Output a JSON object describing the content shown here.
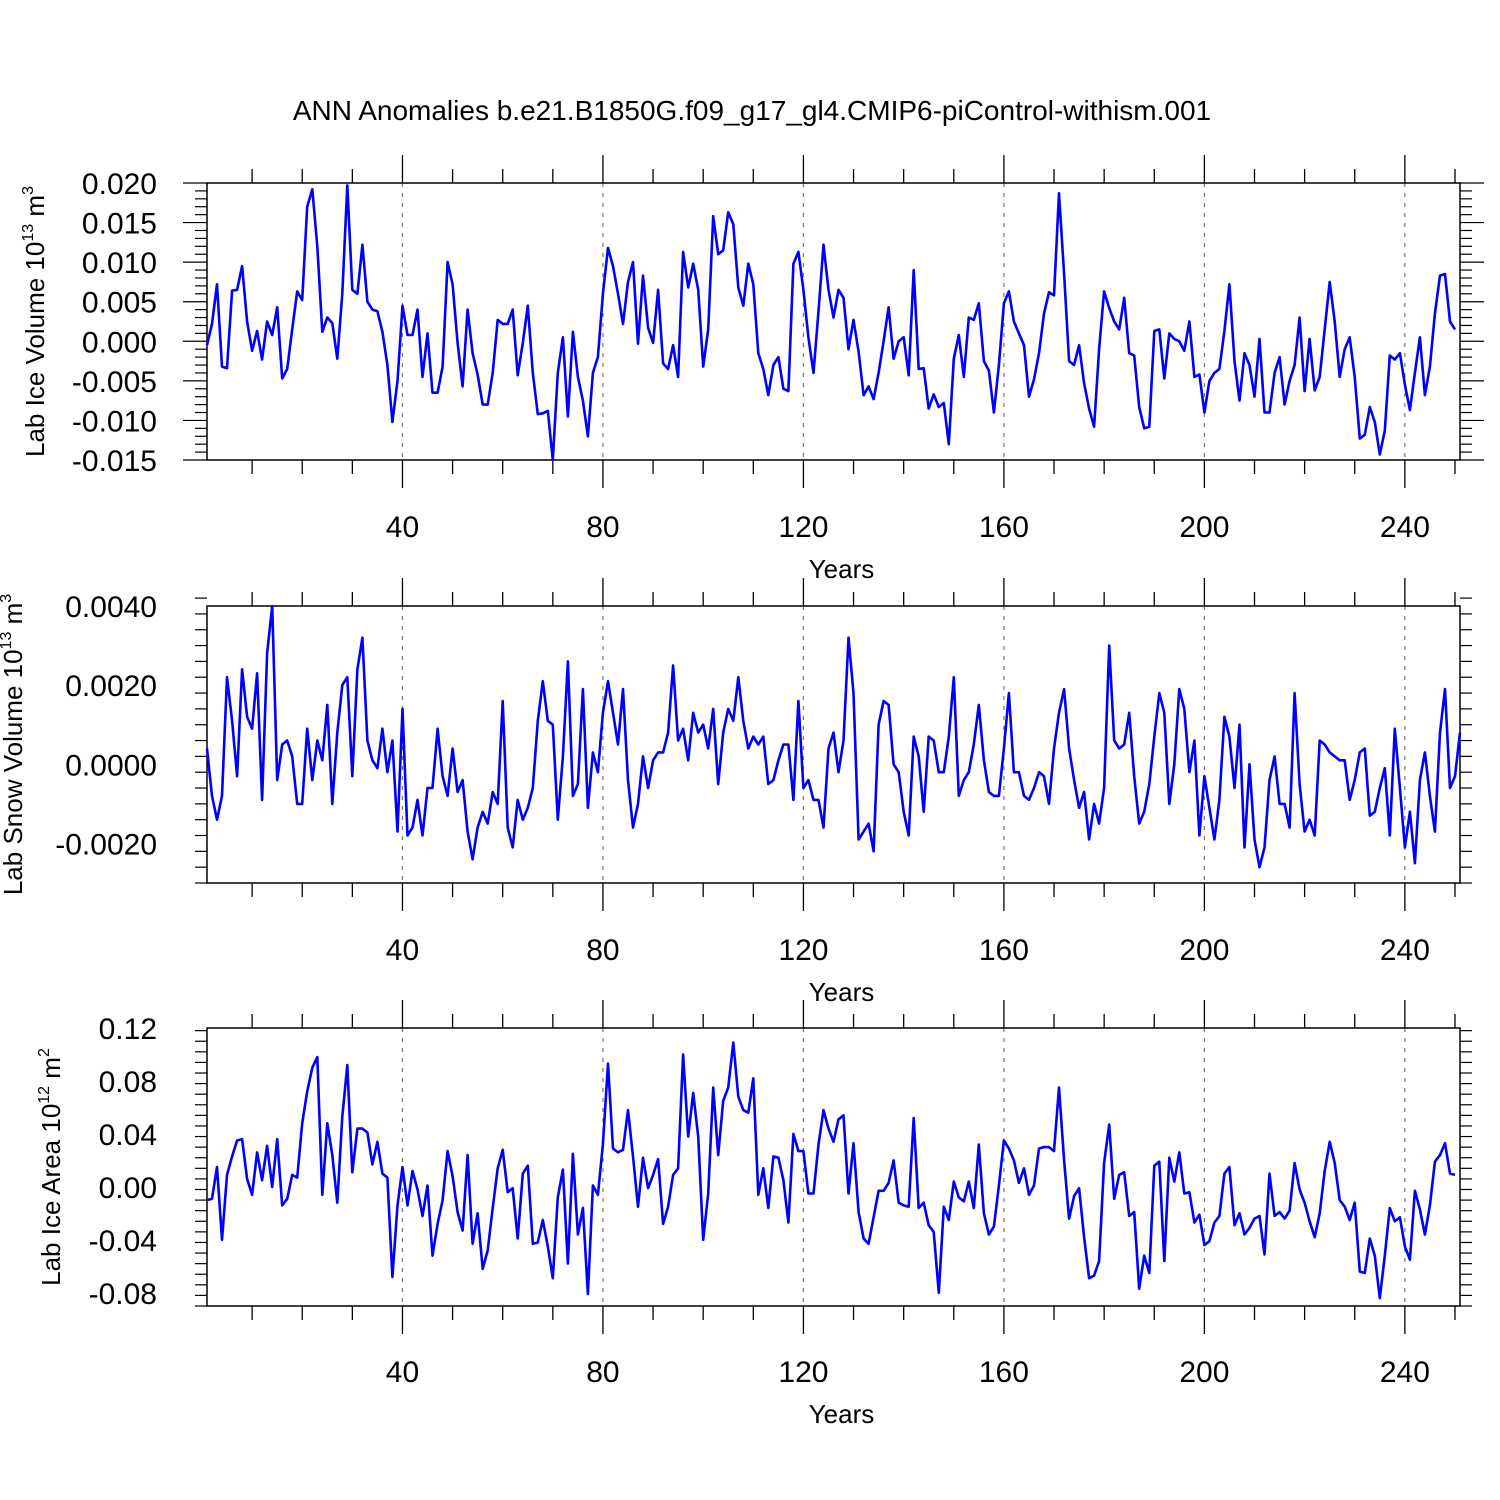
{
  "title": "ANN Anomalies b.e21.B1850G.f09_g17_gl4.CMIP6-piControl-withism.001",
  "line_color": "#0000ff",
  "chart_data": [
    {
      "type": "line",
      "xlabel": "Years",
      "ylabel_main": "Lab Ice Volume 10",
      "ylabel_sup": "13",
      "ylabel_unit": "m",
      "ylabel_unit_sup": "3",
      "xlim": [
        1,
        251
      ],
      "ylim": [
        -0.015,
        0.02
      ],
      "xticks": [
        40,
        80,
        120,
        160,
        200,
        240
      ],
      "xtick_labels": [
        "40",
        "80",
        "120",
        "160",
        "200",
        "240"
      ],
      "yticks": [
        -0.015,
        -0.01,
        -0.005,
        0.0,
        0.005,
        0.01,
        0.015,
        0.02
      ],
      "ytick_labels": [
        "-0.015",
        "-0.010",
        "-0.005",
        "0.000",
        "0.005",
        "0.010",
        "0.015",
        "0.020"
      ],
      "values": [
        -0.0005,
        0.0022,
        0.0072,
        -0.0032,
        -0.0034,
        0.0064,
        0.0065,
        0.0095,
        0.0025,
        -0.0012,
        0.0013,
        -0.0023,
        0.0025,
        0.0008,
        0.0043,
        -0.0047,
        -0.0035,
        0.0015,
        0.0063,
        0.0052,
        0.017,
        0.0192,
        0.012,
        0.0012,
        0.003,
        0.0023,
        -0.0022,
        0.006,
        0.0197,
        0.0065,
        0.006,
        0.0122,
        0.005,
        0.004,
        0.0038,
        0.0012,
        -0.003,
        -0.0102,
        -0.005,
        0.0045,
        0.0008,
        0.0008,
        0.004,
        -0.0045,
        0.001,
        -0.0065,
        -0.0065,
        -0.0032,
        0.01,
        0.0072,
        -0.0002,
        -0.0057,
        0.004,
        -0.0015,
        -0.0042,
        -0.008,
        -0.008,
        -0.004,
        0.0027,
        0.0022,
        0.0022,
        0.004,
        -0.0043,
        -0.0002,
        0.0045,
        -0.004,
        -0.0092,
        -0.0091,
        -0.0088,
        -0.015,
        -0.004,
        0.0005,
        -0.0095,
        0.0012,
        -0.0045,
        -0.0075,
        -0.012,
        -0.004,
        -0.002,
        0.006,
        0.0118,
        0.0095,
        0.006,
        0.0022,
        0.0075,
        0.01,
        -0.0003,
        0.0083,
        0.0017,
        -0.0002,
        0.0065,
        -0.0028,
        -0.0035,
        -0.0005,
        -0.0045,
        0.0113,
        0.0068,
        0.0098,
        0.0065,
        -0.0032,
        0.0015,
        0.0158,
        0.011,
        0.0115,
        0.0163,
        0.0148,
        0.0068,
        0.0045,
        0.0098,
        0.0072,
        -0.0015,
        -0.0035,
        -0.0068,
        -0.003,
        -0.002,
        -0.006,
        -0.0063,
        0.0098,
        0.0113,
        0.0065,
        0.0005,
        -0.004,
        0.0038,
        0.0122,
        0.0065,
        0.003,
        0.0065,
        0.0055,
        -0.001,
        0.0027,
        -0.0013,
        -0.0068,
        -0.0057,
        -0.0073,
        -0.004,
        0.0,
        0.0043,
        -0.0022,
        0.0,
        0.0005,
        -0.0043,
        0.009,
        -0.0035,
        -0.0034,
        -0.0085,
        -0.0067,
        -0.0083,
        -0.0078,
        -0.013,
        -0.0022,
        0.0008,
        -0.0045,
        0.003,
        0.0027,
        0.0048,
        -0.0025,
        -0.0037,
        -0.009,
        -0.003,
        0.0048,
        0.0063,
        0.0025,
        0.001,
        -0.0005,
        -0.007,
        -0.0048,
        -0.0015,
        0.0035,
        0.0062,
        0.0058,
        0.0187,
        0.0085,
        -0.0025,
        -0.003,
        -0.0005,
        -0.0053,
        -0.0085,
        -0.0108,
        -0.001,
        0.0063,
        0.0042,
        0.0025,
        0.0015,
        0.0055,
        -0.0015,
        -0.0018,
        -0.0083,
        -0.011,
        -0.0108,
        0.0013,
        0.0015,
        -0.0047,
        0.001,
        0.0003,
        0.0,
        -0.0012,
        0.0025,
        -0.0045,
        -0.0042,
        -0.009,
        -0.005,
        -0.004,
        -0.0035,
        0.0013,
        0.0072,
        -0.0025,
        -0.0075,
        -0.0015,
        -0.003,
        -0.007,
        0.0003,
        -0.009,
        -0.009,
        -0.004,
        -0.002,
        -0.008,
        -0.005,
        -0.003,
        0.003,
        -0.0063,
        0.0003,
        -0.0062,
        -0.0045,
        0.0015,
        0.0075,
        0.0025,
        -0.0045,
        -0.001,
        0.0005,
        -0.0045,
        -0.0123,
        -0.0118,
        -0.0083,
        -0.0102,
        -0.0143,
        -0.0113,
        -0.0018,
        -0.0023,
        -0.0015,
        -0.0055,
        -0.0087,
        -0.004,
        0.0005,
        -0.0068,
        -0.0032,
        0.0035,
        0.0083,
        0.0085,
        0.0025,
        0.0015
      ]
    },
    {
      "type": "line",
      "xlabel": "Years",
      "ylabel_main": "Lab Snow Volume 10",
      "ylabel_sup": "13",
      "ylabel_unit": "m",
      "ylabel_unit_sup": "3",
      "xlim": [
        1,
        251
      ],
      "ylim": [
        -0.003,
        0.004
      ],
      "xticks": [
        40,
        80,
        120,
        160,
        200,
        240
      ],
      "xtick_labels": [
        "40",
        "80",
        "120",
        "160",
        "200",
        "240"
      ],
      "yticks": [
        -0.002,
        0.0,
        0.002,
        0.004
      ],
      "ytick_labels": [
        "-0.0020",
        "0.0000",
        "0.0020",
        "0.0040"
      ],
      "values": [
        0.0004,
        -0.0008,
        -0.0014,
        -0.0008,
        0.0022,
        0.0011,
        -0.0003,
        0.0024,
        0.0012,
        0.0009,
        0.0023,
        -0.0009,
        0.0028,
        0.004,
        -0.0004,
        0.0005,
        0.0006,
        0.0002,
        -0.001,
        -0.001,
        0.0009,
        -0.0004,
        0.0006,
        0.0001,
        0.0015,
        -0.001,
        0.0008,
        0.002,
        0.0022,
        -0.0003,
        0.0024,
        0.0032,
        0.0006,
        0.0001,
        -0.0001,
        0.0009,
        -0.0002,
        0.0006,
        -0.0017,
        0.0014,
        -0.0018,
        -0.0016,
        -0.0009,
        -0.0018,
        -0.0006,
        -0.0006,
        0.0009,
        -0.0003,
        -0.0008,
        0.0004,
        -0.0007,
        -0.0004,
        -0.0017,
        -0.0024,
        -0.0016,
        -0.0012,
        -0.0015,
        -0.0007,
        -0.001,
        0.0016,
        -0.0016,
        -0.0021,
        -0.0009,
        -0.0014,
        -0.0011,
        -0.0006,
        0.0011,
        0.0021,
        0.0011,
        0.001,
        -0.0014,
        0.0002,
        0.0026,
        -0.0008,
        -0.0005,
        0.0019,
        -0.0011,
        0.0003,
        -0.0002,
        0.0013,
        0.0021,
        0.0013,
        0.0005,
        0.0019,
        -0.0004,
        -0.0016,
        -0.001,
        0.0002,
        -0.0006,
        0.0001,
        0.0003,
        0.0003,
        0.0008,
        0.0025,
        0.0006,
        0.0009,
        0.0001,
        0.0013,
        0.0008,
        0.001,
        0.0004,
        0.0014,
        -0.0005,
        0.0008,
        0.0014,
        0.0011,
        0.0022,
        0.0011,
        0.0004,
        0.0007,
        0.0005,
        0.0007,
        -0.0005,
        -0.0004,
        0.0001,
        0.0005,
        0.0005,
        -0.0009,
        0.0016,
        -0.0006,
        -0.0004,
        -0.0009,
        -0.0009,
        -0.0016,
        0.0004,
        0.0008,
        -0.0002,
        0.0006,
        0.0032,
        0.0018,
        -0.0019,
        -0.0017,
        -0.0015,
        -0.0022,
        0.001,
        0.0016,
        0.0015,
        0.0,
        -0.0002,
        -0.0012,
        -0.0018,
        0.0007,
        0.0002,
        -0.0012,
        0.0007,
        0.0006,
        -0.0002,
        -0.0002,
        0.0007,
        0.0022,
        -0.0008,
        -0.0004,
        -0.0002,
        0.0005,
        0.0015,
        0.0001,
        -0.0007,
        -0.0008,
        -0.0008,
        0.0004,
        0.0018,
        -0.0002,
        -0.0002,
        -0.0008,
        -0.0009,
        -0.0006,
        -0.0002,
        -0.0003,
        -0.001,
        0.0004,
        0.0013,
        0.0019,
        0.0004,
        -0.0004,
        -0.0011,
        -0.0007,
        -0.0019,
        -0.001,
        -0.0015,
        -0.0006,
        0.003,
        0.0006,
        0.0004,
        0.0005,
        0.0013,
        -0.0003,
        -0.0015,
        -0.0012,
        -0.0005,
        0.0007,
        0.0018,
        0.0013,
        -0.001,
        0.0,
        0.0019,
        0.0014,
        -0.0002,
        0.0006,
        -0.0018,
        -0.0003,
        -0.0011,
        -0.0019,
        -0.0009,
        0.0012,
        0.0007,
        -0.0006,
        0.001,
        -0.0021,
        0.0,
        -0.0019,
        -0.0026,
        -0.0021,
        -0.0004,
        0.0002,
        -0.001,
        -0.001,
        -0.0016,
        0.0018,
        -0.0005,
        -0.0017,
        -0.0014,
        -0.0018,
        0.0006,
        0.0005,
        0.0003,
        0.0002,
        0.0001,
        0.0001,
        -0.0009,
        -0.0004,
        0.0003,
        0.0004,
        -0.0013,
        -0.0012,
        -0.0006,
        -0.0001,
        -0.0018,
        0.0009,
        -0.0006,
        -0.0021,
        -0.0012,
        -0.0025,
        -0.0004,
        0.0003,
        -0.0008,
        -0.0017,
        0.0008,
        0.0019,
        -0.0006,
        -0.0003,
        0.0008
      ]
    },
    {
      "type": "line",
      "xlabel": "Years",
      "ylabel_main": "Lab Ice Area 10",
      "ylabel_sup": "12",
      "ylabel_unit": "m",
      "ylabel_unit_sup": "2",
      "xlim": [
        1,
        251
      ],
      "ylim": [
        -0.09,
        0.12
      ],
      "xticks": [
        40,
        80,
        120,
        160,
        200,
        240
      ],
      "xtick_labels": [
        "40",
        "80",
        "120",
        "160",
        "200",
        "240"
      ],
      "yticks": [
        -0.08,
        -0.04,
        0.0,
        0.04,
        0.08,
        0.12
      ],
      "ytick_labels": [
        "-0.08",
        "-0.04",
        "0.00",
        "0.04",
        "0.08",
        "0.12"
      ],
      "values": [
        -0.01,
        -0.009,
        0.015,
        -0.04,
        0.009,
        0.023,
        0.035,
        0.036,
        0.006,
        -0.006,
        0.026,
        0.005,
        0.031,
        0.0,
        0.036,
        -0.014,
        -0.009,
        0.009,
        0.007,
        0.048,
        0.072,
        0.09,
        0.098,
        -0.006,
        0.048,
        0.024,
        -0.012,
        0.053,
        0.092,
        0.011,
        0.044,
        0.044,
        0.041,
        0.017,
        0.034,
        0.01,
        0.007,
        -0.068,
        -0.014,
        0.015,
        -0.014,
        0.012,
        -0.002,
        -0.022,
        0.001,
        -0.052,
        -0.028,
        -0.01,
        0.027,
        0.008,
        -0.019,
        -0.033,
        0.024,
        -0.043,
        -0.02,
        -0.062,
        -0.048,
        -0.016,
        0.014,
        0.028,
        -0.004,
        -0.001,
        -0.039,
        0.01,
        0.016,
        -0.043,
        -0.042,
        -0.025,
        -0.045,
        -0.069,
        -0.008,
        0.013,
        -0.058,
        0.025,
        -0.036,
        -0.016,
        -0.081,
        0.001,
        -0.006,
        0.032,
        0.093,
        0.029,
        0.026,
        0.028,
        0.058,
        0.023,
        -0.015,
        0.022,
        -0.001,
        0.009,
        0.021,
        -0.028,
        -0.015,
        0.009,
        0.014,
        0.1,
        0.038,
        0.071,
        0.038,
        -0.04,
        -0.005,
        0.075,
        0.024,
        0.065,
        0.075,
        0.109,
        0.068,
        0.058,
        0.056,
        0.082,
        -0.006,
        0.014,
        -0.016,
        0.023,
        0.022,
        0.005,
        -0.027,
        0.04,
        0.027,
        0.027,
        -0.005,
        -0.005,
        0.032,
        0.058,
        0.044,
        0.034,
        0.051,
        0.054,
        -0.005,
        0.033,
        -0.019,
        -0.039,
        -0.043,
        -0.023,
        -0.003,
        -0.003,
        0.003,
        0.02,
        -0.012,
        -0.014,
        -0.015,
        0.052,
        -0.016,
        -0.012,
        -0.029,
        -0.034,
        -0.08,
        -0.015,
        -0.025,
        0.004,
        -0.008,
        -0.011,
        0.004,
        -0.016,
        0.032,
        -0.02,
        -0.036,
        -0.03,
        0.001,
        0.035,
        0.029,
        0.02,
        0.003,
        0.014,
        -0.006,
        0.001,
        0.029,
        0.03,
        0.03,
        0.027,
        0.075,
        0.02,
        -0.024,
        -0.007,
        -0.001,
        -0.038,
        -0.069,
        -0.067,
        -0.056,
        0.018,
        0.047,
        -0.009,
        0.009,
        0.011,
        -0.022,
        -0.019,
        -0.077,
        -0.052,
        -0.065,
        0.016,
        0.019,
        -0.056,
        0.022,
        0.004,
        0.026,
        -0.005,
        -0.004,
        -0.027,
        -0.021,
        -0.044,
        -0.041,
        -0.027,
        -0.022,
        0.01,
        0.015,
        -0.029,
        -0.02,
        -0.036,
        -0.031,
        -0.024,
        -0.022,
        -0.051,
        0.01,
        -0.022,
        -0.019,
        -0.024,
        -0.018,
        0.018,
        -0.002,
        -0.012,
        -0.026,
        -0.038,
        -0.02,
        0.012,
        0.034,
        0.018,
        -0.01,
        -0.015,
        -0.025,
        -0.012,
        -0.064,
        -0.065,
        -0.039,
        -0.052,
        -0.084,
        -0.052,
        -0.016,
        -0.026,
        -0.023,
        -0.045,
        -0.055,
        -0.003,
        -0.017,
        -0.036,
        -0.014,
        0.019,
        0.024,
        0.033,
        0.01,
        0.009
      ]
    }
  ]
}
